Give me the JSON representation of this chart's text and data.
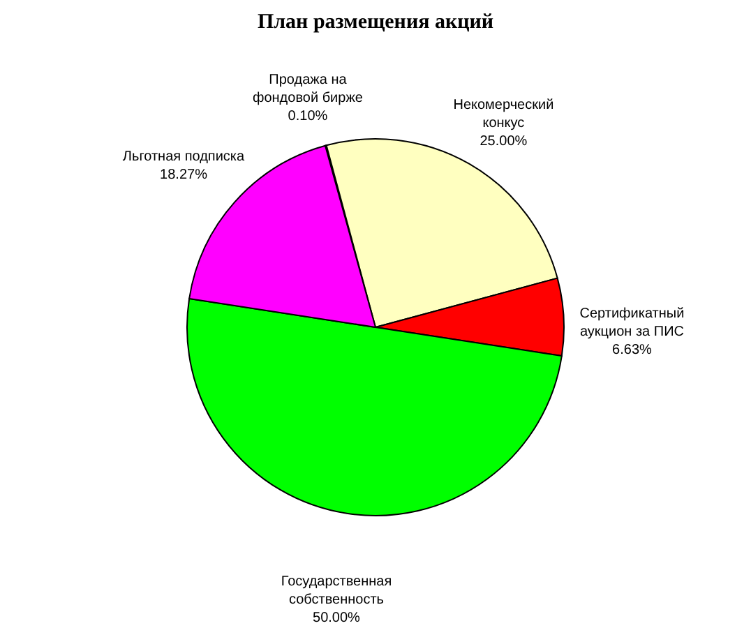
{
  "chart_data": {
    "type": "pie",
    "title": "План размещения акций",
    "categories": [
      "Продажа на фондовой бирже",
      "Некомерческий конкус",
      "Сертификатный аукцион за ПИС",
      "Государственная собственность",
      "Льготная подписка"
    ],
    "values": [
      0.1,
      25.0,
      6.63,
      50.0,
      18.27
    ],
    "colors": [
      "#000080",
      "#ffffc0",
      "#ff0000",
      "#00ff00",
      "#ff00ff"
    ],
    "value_labels": [
      "0.10%",
      "25.00%",
      "6.63%",
      "50.00%",
      "18.27%"
    ],
    "legend": false
  }
}
